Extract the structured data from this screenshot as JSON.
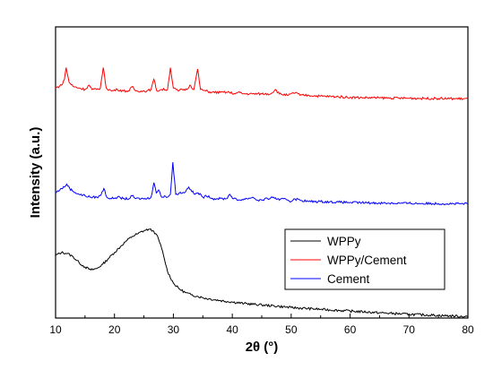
{
  "chart_data": {
    "type": "line",
    "title": "",
    "xlabel": "2θ (°)",
    "ylabel": "Intensity (a.u.)",
    "xlim": [
      10,
      80
    ],
    "xticks": [
      10,
      20,
      30,
      40,
      50,
      60,
      70,
      80
    ],
    "yticks_shown": false,
    "grid": false,
    "legend_position": "lower-right",
    "series": [
      {
        "name": "WPPy",
        "color": "#000000",
        "x": [
          10,
          11,
          12,
          13,
          14,
          15,
          16,
          17,
          18,
          19,
          20,
          21,
          22,
          23,
          24,
          25,
          25.8,
          26.5,
          27,
          27.5,
          28,
          28.5,
          29,
          30,
          31,
          32,
          33,
          34,
          35,
          36,
          38,
          40,
          42,
          45,
          48,
          50,
          55,
          60,
          65,
          70,
          75,
          80
        ],
        "y": [
          0.215,
          0.225,
          0.222,
          0.21,
          0.19,
          0.175,
          0.165,
          0.17,
          0.185,
          0.205,
          0.225,
          0.245,
          0.265,
          0.28,
          0.29,
          0.3,
          0.305,
          0.3,
          0.29,
          0.27,
          0.24,
          0.2,
          0.16,
          0.12,
          0.1,
          0.088,
          0.08,
          0.075,
          0.07,
          0.066,
          0.06,
          0.055,
          0.05,
          0.045,
          0.04,
          0.036,
          0.03,
          0.024,
          0.018,
          0.013,
          0.009,
          0.005
        ]
      },
      {
        "name": "WPPy/Cement",
        "color": "#ff0000",
        "x": [
          10,
          11,
          11.5,
          11.8,
          12.3,
          13,
          14,
          15,
          15.7,
          16.2,
          17,
          17.6,
          18.1,
          18.6,
          19.5,
          20.5,
          21.5,
          22.5,
          23,
          23.6,
          24.5,
          25.5,
          26.2,
          26.7,
          27.2,
          28,
          29,
          29.5,
          30,
          30.8,
          31.5,
          32.3,
          32.8,
          33.5,
          34.1,
          34.6,
          35.5,
          36.5,
          38,
          39.5,
          40.5,
          41,
          42,
          43.5,
          45,
          46.5,
          47.3,
          48,
          49.5,
          50.8,
          51.5,
          53,
          55,
          58,
          60,
          62,
          65,
          70,
          75,
          80
        ],
        "y": [
          0.79,
          0.8,
          0.82,
          0.86,
          0.81,
          0.795,
          0.79,
          0.785,
          0.8,
          0.785,
          0.785,
          0.79,
          0.86,
          0.79,
          0.78,
          0.785,
          0.78,
          0.78,
          0.795,
          0.78,
          0.78,
          0.78,
          0.785,
          0.82,
          0.78,
          0.785,
          0.785,
          0.86,
          0.79,
          0.78,
          0.785,
          0.785,
          0.8,
          0.785,
          0.855,
          0.785,
          0.78,
          0.775,
          0.775,
          0.775,
          0.77,
          0.775,
          0.77,
          0.77,
          0.77,
          0.77,
          0.785,
          0.77,
          0.765,
          0.775,
          0.765,
          0.765,
          0.762,
          0.76,
          0.758,
          0.757,
          0.756,
          0.755,
          0.754,
          0.753
        ]
      },
      {
        "name": "Cement",
        "color": "#0000ff",
        "x": [
          10,
          11,
          11.5,
          11.9,
          12.4,
          13,
          14,
          15,
          16,
          17,
          17.6,
          18.2,
          18.7,
          19.5,
          20.5,
          21.5,
          22.5,
          23,
          23.6,
          24.5,
          25.5,
          26.2,
          26.7,
          27.1,
          27.5,
          28,
          28.5,
          29,
          29.5,
          29.9,
          30.4,
          31,
          31.8,
          32.6,
          33,
          33.6,
          34.2,
          35,
          36,
          36.5,
          37.5,
          39,
          39.6,
          40.2,
          41,
          42.5,
          43.5,
          44.2,
          45,
          46,
          47,
          48,
          49,
          50,
          50.5,
          51.5,
          53,
          55,
          58,
          60,
          62,
          65,
          70,
          75,
          80
        ],
        "y": [
          0.43,
          0.445,
          0.45,
          0.46,
          0.445,
          0.435,
          0.425,
          0.42,
          0.415,
          0.415,
          0.42,
          0.445,
          0.415,
          0.41,
          0.415,
          0.41,
          0.41,
          0.42,
          0.41,
          0.41,
          0.41,
          0.415,
          0.465,
          0.43,
          0.44,
          0.415,
          0.42,
          0.415,
          0.425,
          0.535,
          0.425,
          0.43,
          0.43,
          0.45,
          0.44,
          0.425,
          0.43,
          0.415,
          0.42,
          0.41,
          0.41,
          0.41,
          0.425,
          0.41,
          0.405,
          0.41,
          0.415,
          0.405,
          0.405,
          0.41,
          0.415,
          0.405,
          0.41,
          0.4,
          0.41,
          0.405,
          0.4,
          0.4,
          0.398,
          0.397,
          0.396,
          0.395,
          0.394,
          0.393,
          0.392
        ]
      }
    ]
  }
}
